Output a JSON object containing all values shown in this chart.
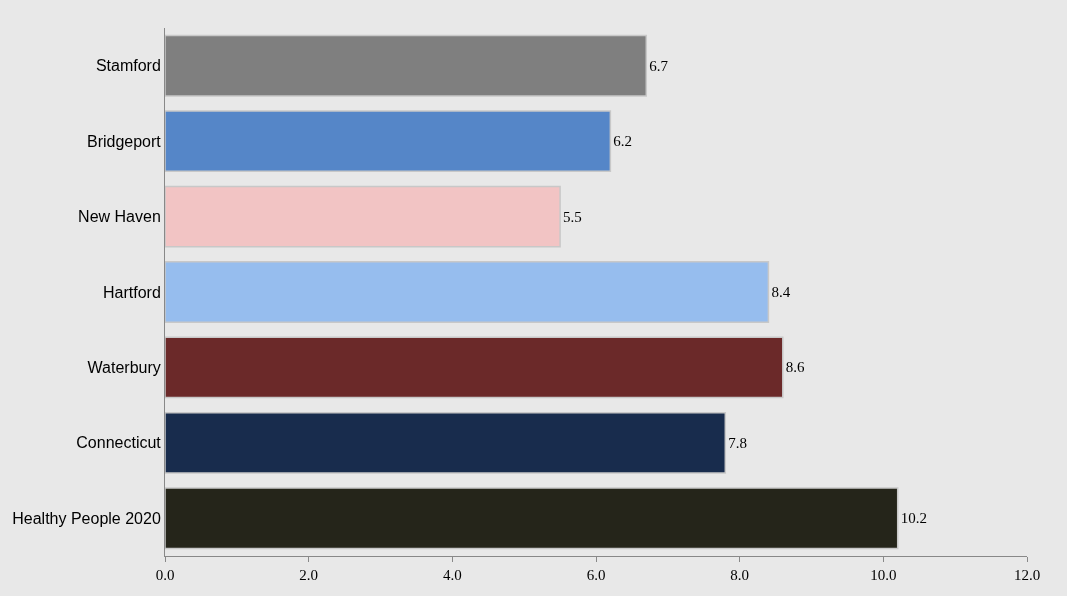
{
  "chart_data": {
    "type": "bar",
    "orientation": "horizontal",
    "categories": [
      "Stamford",
      "Bridgeport",
      "New Haven",
      "Hartford",
      "Waterbury",
      "Connecticut",
      "Healthy People 2020"
    ],
    "values": [
      6.7,
      6.2,
      5.5,
      8.4,
      8.6,
      7.8,
      10.2
    ],
    "colors": [
      "#7f7f7f",
      "#5586c8",
      "#f2c4c4",
      "#96bdee",
      "#6b2929",
      "#182c4d",
      "#25251a"
    ],
    "xlim": [
      0,
      12
    ],
    "xticks": [
      {
        "value": 0,
        "label": "0.0"
      },
      {
        "value": 2,
        "label": "2.0"
      },
      {
        "value": 4,
        "label": "4.0"
      },
      {
        "value": 6,
        "label": "6.0"
      },
      {
        "value": 8,
        "label": "8.0"
      },
      {
        "value": 10,
        "label": "10.0"
      },
      {
        "value": 12,
        "label": "12.0"
      }
    ],
    "data_labels": true
  }
}
